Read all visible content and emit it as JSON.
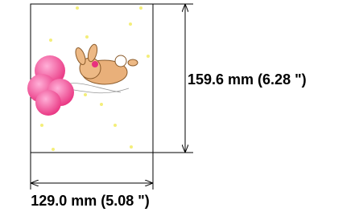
{
  "dimensions": {
    "height": "159.6 mm (6.28 \")",
    "width": "129.0 mm (5.08 \")"
  }
}
